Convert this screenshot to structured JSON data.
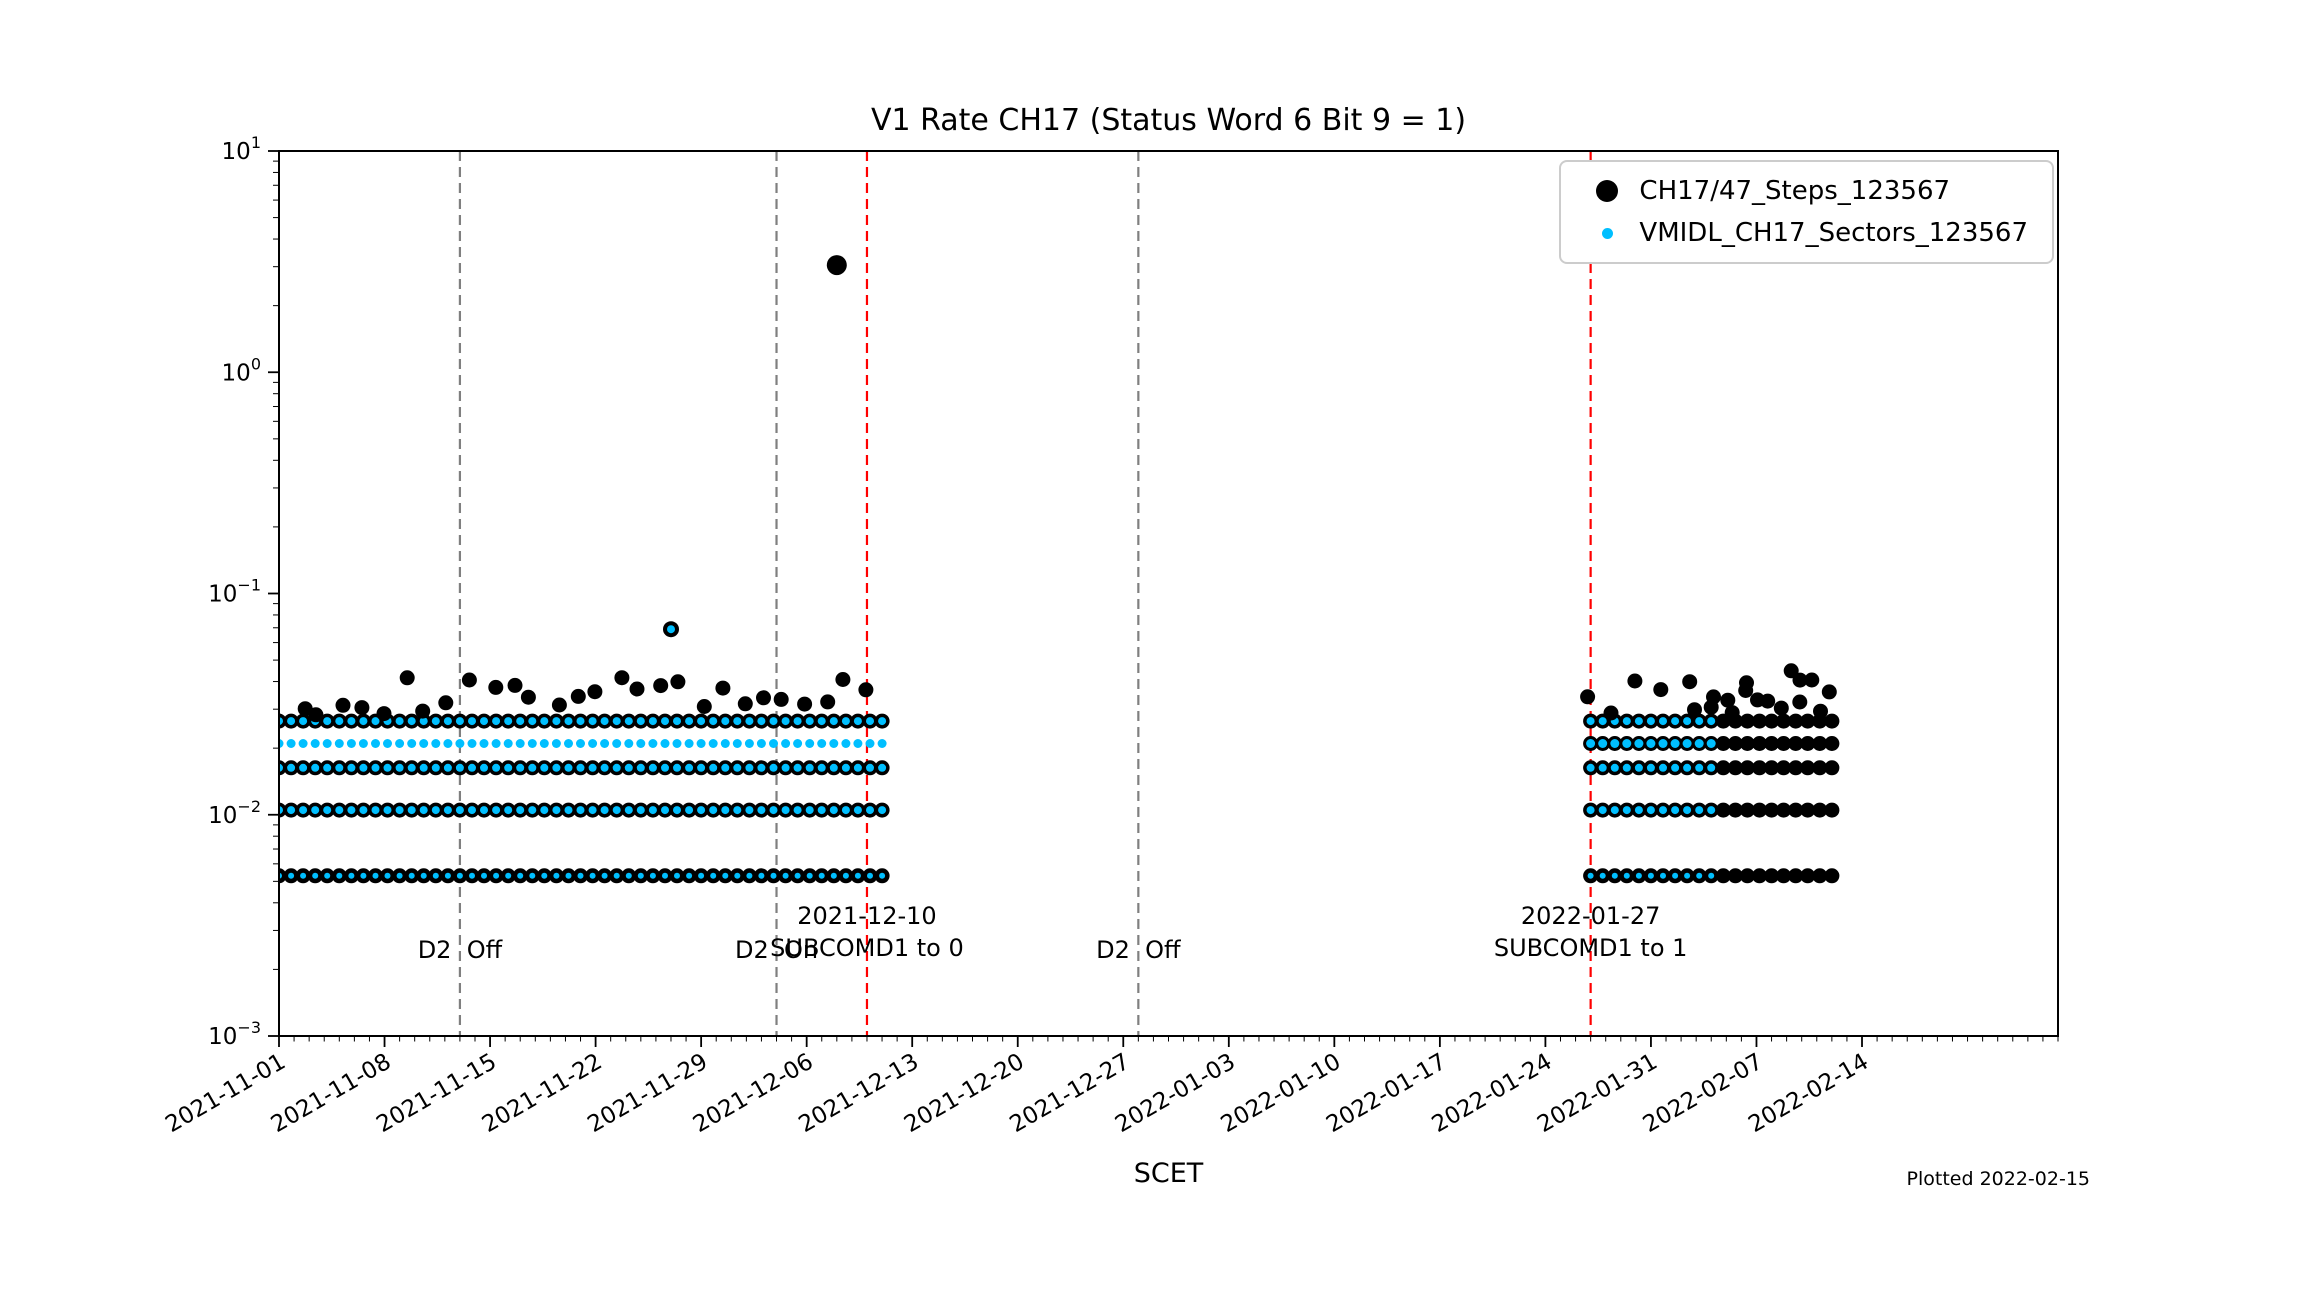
{
  "chart_data": {
    "type": "scatter",
    "title": "V1 Rate CH17 (Status Word 6 Bit 9 = 1)",
    "xlabel": "SCET",
    "ylabel": "",
    "y_scale": "log",
    "ylim": [
      0.001,
      10
    ],
    "xlim": [
      "2021-11-01",
      "2022-02-27"
    ],
    "grid": false,
    "legend_position": "upper right",
    "plotted_note": "Plotted 2022-02-15",
    "colors": {
      "steps": "#000000",
      "sectors": "#00BFFF",
      "gray_line": "#7f7f7f",
      "red_line": "#ff0000",
      "axes": "#000000"
    },
    "legend": [
      {
        "label": "CH17/47_Steps_123567",
        "color": "#000000",
        "marker": "large-dot"
      },
      {
        "label": "VMIDL_CH17_Sectors_123567",
        "color": "#00BFFF",
        "marker": "small-dot"
      }
    ],
    "x_major_ticks": [
      "2021-11-01",
      "2021-11-08",
      "2021-11-15",
      "2021-11-22",
      "2021-11-29",
      "2021-12-06",
      "2021-12-13",
      "2021-12-20",
      "2021-12-27",
      "2022-01-03",
      "2022-01-10",
      "2022-01-17",
      "2022-01-24",
      "2022-01-31",
      "2022-02-07",
      "2022-02-14"
    ],
    "y_tick_exponents": [
      1,
      0,
      -1,
      -2,
      -3
    ],
    "vlines": [
      {
        "date": "2021-11-13",
        "color": "#7f7f7f",
        "label": "D2  Off",
        "label_style": "bottom"
      },
      {
        "date": "2021-12-04",
        "color": "#7f7f7f",
        "label": "D2  On",
        "label_style": "bottom"
      },
      {
        "date": "2021-12-10",
        "color": "#ff0000",
        "label": "2021-12-10\nSUBCOMD1 to 0",
        "label_style": "upper"
      },
      {
        "date": "2021-12-28",
        "color": "#7f7f7f",
        "label": "D2  Off",
        "label_style": "bottom"
      },
      {
        "date": "2022-01-27",
        "color": "#ff0000",
        "label": "2022-01-27\nSUBCOMD1 to 1",
        "label_style": "upper"
      }
    ],
    "bands": [
      {
        "x_start": "2021-11-01",
        "x_end": "2021-12-11",
        "y": 0.0053,
        "step_days": 0.8,
        "black": true,
        "cyan": true,
        "cyan_r": 3
      },
      {
        "x_start": "2021-11-01",
        "x_end": "2021-12-11",
        "y": 0.0105,
        "step_days": 0.8,
        "black": true,
        "cyan": true
      },
      {
        "x_start": "2021-11-01",
        "x_end": "2021-12-11",
        "y": 0.0163,
        "step_days": 0.8,
        "black": true,
        "cyan": true
      },
      {
        "x_start": "2021-11-01",
        "x_end": "2021-12-11",
        "y": 0.021,
        "step_days": 0.8,
        "black": false,
        "cyan": true,
        "cyan_r": 4.5
      },
      {
        "x_start": "2021-11-01",
        "x_end": "2021-12-11",
        "y": 0.0265,
        "step_days": 0.8,
        "black": true,
        "cyan": true
      },
      {
        "x_start": "2022-01-27",
        "x_end": "2022-02-12",
        "y": 0.0053,
        "step_days": 0.8,
        "black": true,
        "cyan": false
      },
      {
        "x_start": "2022-01-27",
        "x_end": "2022-02-12",
        "y": 0.0105,
        "step_days": 0.8,
        "black": true,
        "cyan": false
      },
      {
        "x_start": "2022-01-27",
        "x_end": "2022-02-12",
        "y": 0.0163,
        "step_days": 0.8,
        "black": true,
        "cyan": false
      },
      {
        "x_start": "2022-01-27",
        "x_end": "2022-02-12",
        "y": 0.021,
        "step_days": 0.8,
        "black": true,
        "cyan": false
      },
      {
        "x_start": "2022-01-27",
        "x_end": "2022-02-12",
        "y": 0.0265,
        "step_days": 0.8,
        "black": true,
        "cyan": false
      },
      {
        "x_start": "2022-01-27",
        "x_end": "2022-02-04",
        "y": 0.0053,
        "step_days": 0.8,
        "black": false,
        "cyan": true,
        "cyan_r": 3
      },
      {
        "x_start": "2022-01-27",
        "x_end": "2022-02-04",
        "y": 0.0105,
        "step_days": 0.8,
        "black": false,
        "cyan": true
      },
      {
        "x_start": "2022-01-27",
        "x_end": "2022-02-04",
        "y": 0.0163,
        "step_days": 0.8,
        "black": false,
        "cyan": true
      },
      {
        "x_start": "2022-01-27",
        "x_end": "2022-02-04",
        "y": 0.021,
        "step_days": 0.8,
        "black": false,
        "cyan": true,
        "cyan_r": 4.5
      },
      {
        "x_start": "2022-01-27",
        "x_end": "2022-02-04",
        "y": 0.0265,
        "step_days": 0.8,
        "black": false,
        "cyan": true
      }
    ],
    "jitter_bands": [
      {
        "x_start": "2021-11-01",
        "x_end": "2021-12-11",
        "y_min": 0.028,
        "y_max": 0.042,
        "step_days": 1.4
      },
      {
        "x_start": "2022-01-27",
        "x_end": "2022-02-03",
        "y_min": 0.028,
        "y_max": 0.045,
        "step_days": 1.6
      },
      {
        "x_start": "2022-02-03",
        "x_end": "2022-02-12",
        "y_min": 0.028,
        "y_max": 0.045,
        "step_days": 0.6
      }
    ],
    "outliers": [
      {
        "x": "2021-11-27",
        "y": 0.069,
        "black": true,
        "cyan": true,
        "r": 8
      },
      {
        "x": "2021-12-08",
        "y": 3.05,
        "black": true,
        "cyan": false,
        "r": 10
      }
    ]
  }
}
